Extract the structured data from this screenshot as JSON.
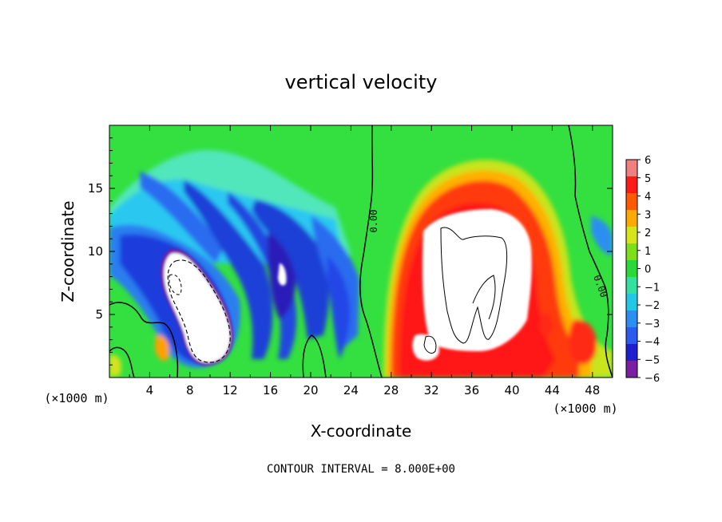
{
  "chart_data": {
    "type": "heatmap",
    "title": "vertical velocity",
    "xlabel": "X-coordinate",
    "ylabel": "Z-coordinate",
    "x_unit_left": "(×1000 m)",
    "x_unit_right": "(×1000 m)",
    "xlim": [
      0,
      50
    ],
    "ylim": [
      0,
      20
    ],
    "x_ticks": [
      4,
      8,
      12,
      16,
      20,
      24,
      28,
      32,
      36,
      40,
      44,
      48
    ],
    "x_tick_labels": [
      "4",
      "8",
      "12",
      "16",
      "20",
      "24",
      "28",
      "32",
      "36",
      "40",
      "44",
      "48"
    ],
    "y_ticks": [
      5,
      10,
      15
    ],
    "y_tick_labels": [
      "5",
      "10",
      "15"
    ],
    "colorbar": {
      "labels": [
        "6",
        "5",
        "4",
        "3",
        "2",
        "1",
        "0",
        "−1",
        "−2",
        "−3",
        "−4",
        "−5",
        "−6"
      ],
      "values": [
        6,
        5,
        4,
        3,
        2,
        1,
        0,
        -1,
        -2,
        -3,
        -4,
        -5,
        -6
      ]
    },
    "contour_labels": [
      "0.00",
      "0.00"
    ],
    "footer": "CONTOUR INTERVAL = 8.000E+00",
    "features": [
      {
        "kind": "downdraft",
        "x": 7.8,
        "z": 6.5,
        "value": -8
      },
      {
        "kind": "downdraft",
        "x": 17,
        "z": 8,
        "value": -6
      },
      {
        "kind": "updraft",
        "x": 35.5,
        "z": 8.5,
        "value": 8
      },
      {
        "kind": "updraft",
        "x": 46.5,
        "z": 2.3,
        "value": 6
      }
    ]
  },
  "colors": {
    "scale": [
      "#7a1fa2",
      "#1f1fd0",
      "#2a5cf0",
      "#2a8ff0",
      "#21c8e6",
      "#33e0a0",
      "#2bd83a",
      "#7ddf1a",
      "#d6e51a",
      "#ffaa00",
      "#ff5a00",
      "#ff1a1a",
      "#f08080"
    ],
    "saturated": "#ffffff",
    "contour": "#000000"
  }
}
